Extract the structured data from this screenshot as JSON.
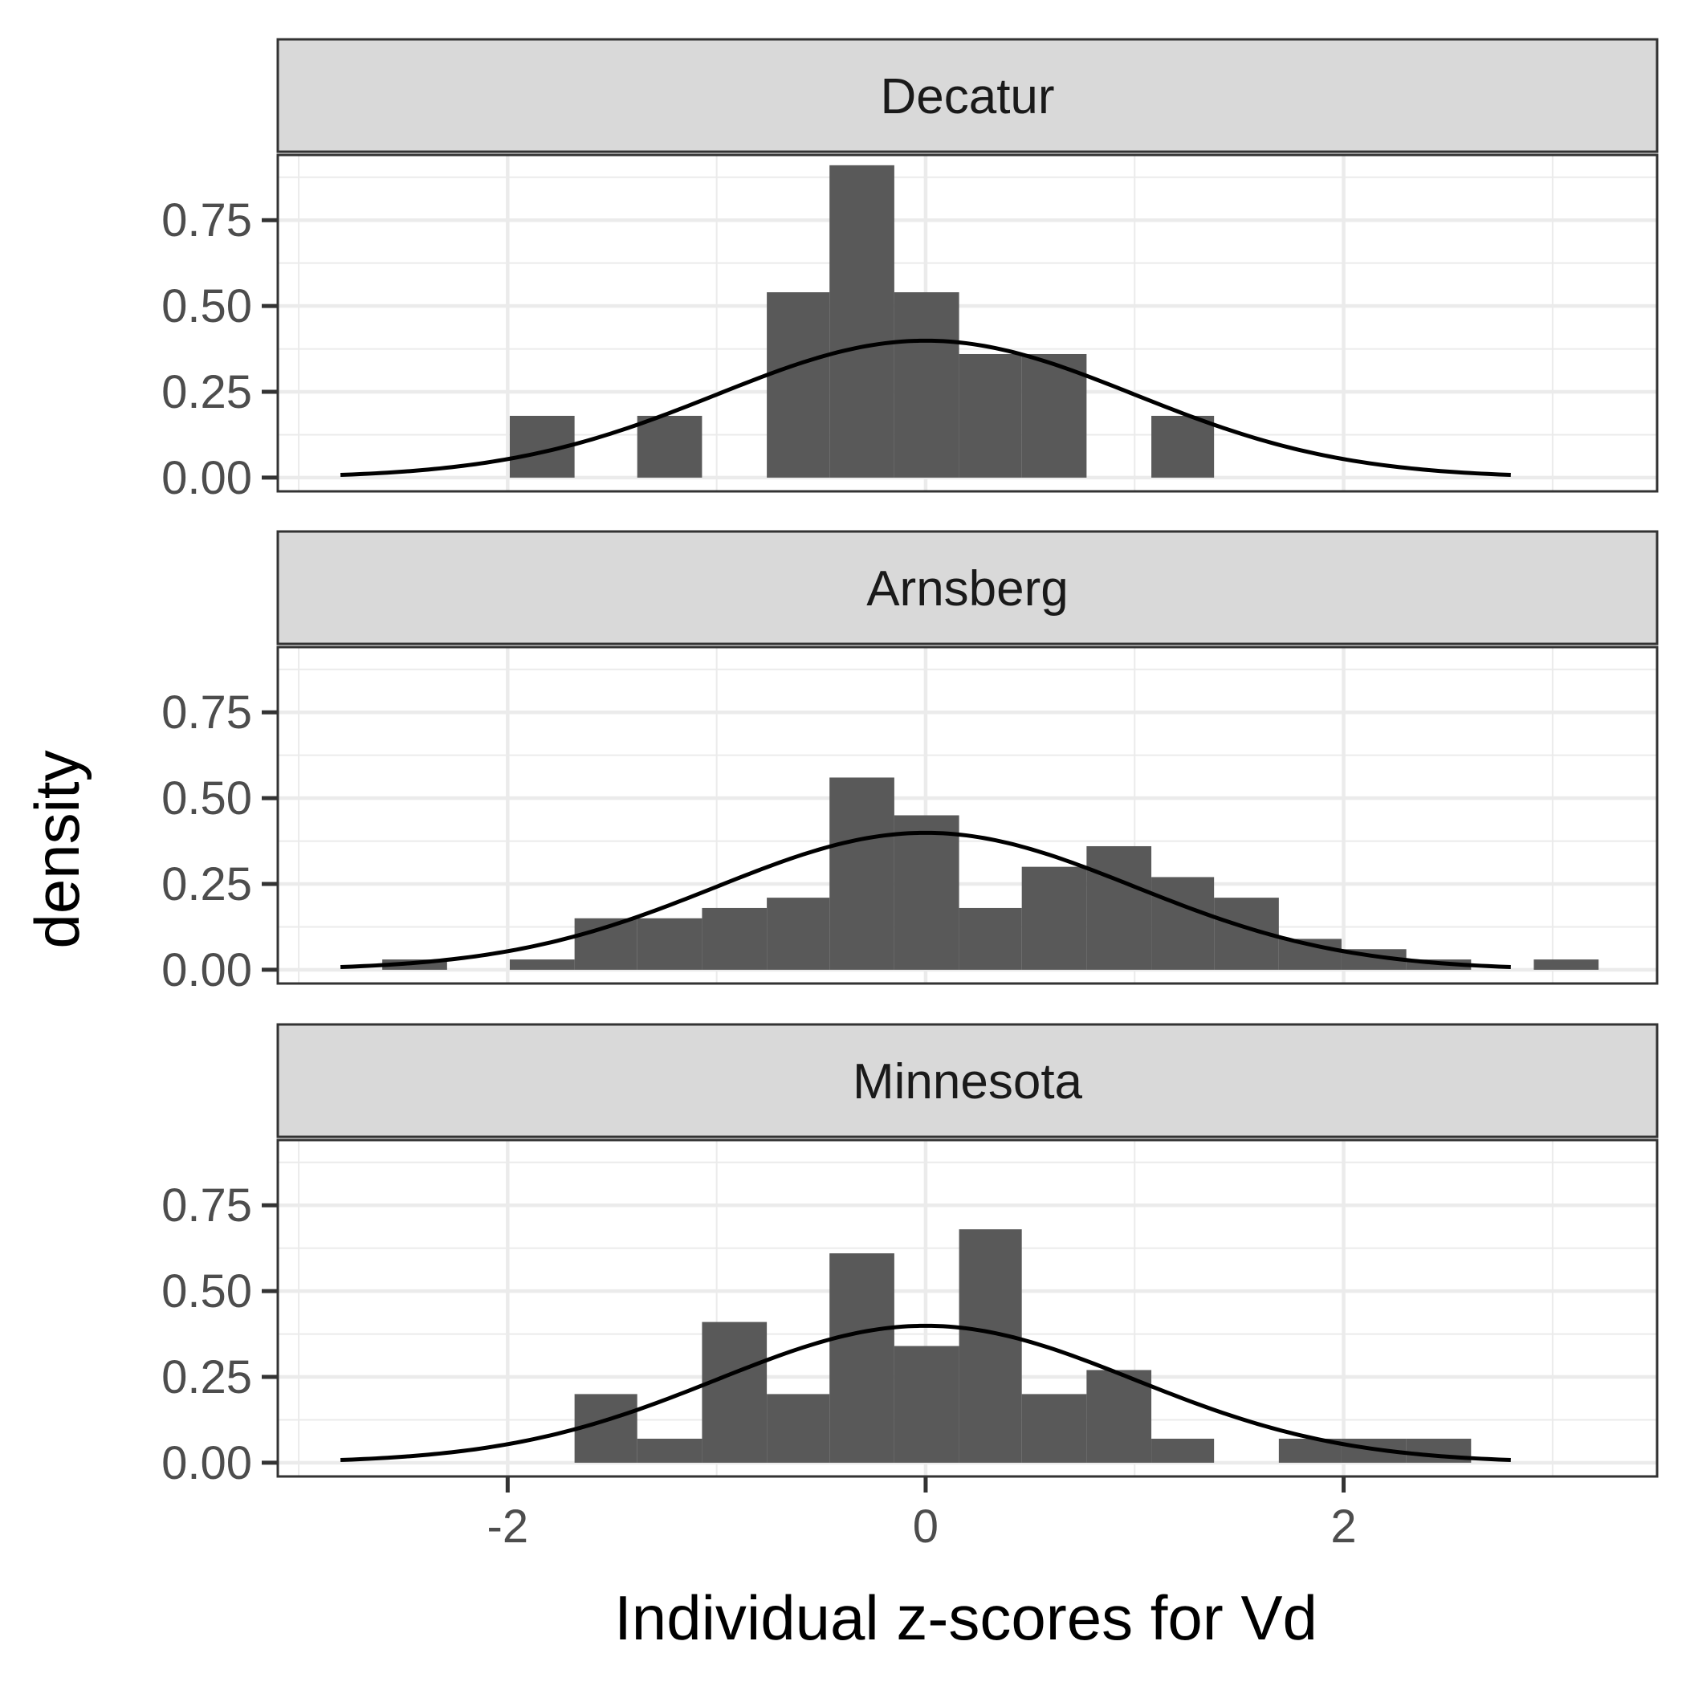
{
  "chart_data": {
    "type": "bar",
    "subtype": "faceted-histogram-with-normal-curve",
    "xlabel": "Individual z-scores for Vd",
    "ylabel": "density",
    "xlim": [
      -3.1,
      3.5
    ],
    "ylim": [
      -0.04,
      0.94
    ],
    "x_ticks": [
      -2,
      0,
      2
    ],
    "x_tick_labels": [
      "-2",
      "0",
      "2"
    ],
    "y_ticks": [
      0,
      0.25,
      0.5,
      0.75
    ],
    "y_tick_labels": [
      "0.00",
      "0.25",
      "0.50",
      "0.75"
    ],
    "grid": true,
    "bin_width": 0.306,
    "bar_color": "#595959",
    "curve": {
      "type": "normal-density",
      "mean": 0,
      "sd": 1,
      "x_range": [
        -2.8,
        2.8
      ],
      "color": "#000000"
    },
    "facets": [
      {
        "name": "Decatur",
        "bins": [
          {
            "x0": -1.99,
            "x1": -1.68,
            "density": 0.18
          },
          {
            "x0": -1.38,
            "x1": -1.07,
            "density": 0.18
          },
          {
            "x0": -0.76,
            "x1": -0.46,
            "density": 0.54
          },
          {
            "x0": -0.46,
            "x1": -0.15,
            "density": 0.91
          },
          {
            "x0": -0.15,
            "x1": 0.16,
            "density": 0.54
          },
          {
            "x0": 0.16,
            "x1": 0.46,
            "density": 0.36
          },
          {
            "x0": 0.46,
            "x1": 0.77,
            "density": 0.36
          },
          {
            "x0": 1.08,
            "x1": 1.38,
            "density": 0.18
          }
        ]
      },
      {
        "name": "Arnsberg",
        "bins": [
          {
            "x0": -2.6,
            "x1": -2.29,
            "density": 0.03
          },
          {
            "x0": -1.99,
            "x1": -1.68,
            "density": 0.03
          },
          {
            "x0": -1.68,
            "x1": -1.38,
            "density": 0.15
          },
          {
            "x0": -1.38,
            "x1": -1.07,
            "density": 0.15
          },
          {
            "x0": -1.07,
            "x1": -0.76,
            "density": 0.18
          },
          {
            "x0": -0.76,
            "x1": -0.46,
            "density": 0.21
          },
          {
            "x0": -0.46,
            "x1": -0.15,
            "density": 0.56
          },
          {
            "x0": -0.15,
            "x1": 0.16,
            "density": 0.45
          },
          {
            "x0": 0.16,
            "x1": 0.46,
            "density": 0.18
          },
          {
            "x0": 0.46,
            "x1": 0.77,
            "density": 0.3
          },
          {
            "x0": 0.77,
            "x1": 1.08,
            "density": 0.36
          },
          {
            "x0": 1.08,
            "x1": 1.38,
            "density": 0.27
          },
          {
            "x0": 1.38,
            "x1": 1.69,
            "density": 0.21
          },
          {
            "x0": 1.69,
            "x1": 1.99,
            "density": 0.09
          },
          {
            "x0": 1.99,
            "x1": 2.3,
            "density": 0.06
          },
          {
            "x0": 2.3,
            "x1": 2.61,
            "density": 0.03
          },
          {
            "x0": 2.91,
            "x1": 3.22,
            "density": 0.03
          }
        ]
      },
      {
        "name": "Minnesota",
        "bins": [
          {
            "x0": -1.68,
            "x1": -1.38,
            "density": 0.2
          },
          {
            "x0": -1.38,
            "x1": -1.07,
            "density": 0.07
          },
          {
            "x0": -1.07,
            "x1": -0.76,
            "density": 0.41
          },
          {
            "x0": -0.76,
            "x1": -0.46,
            "density": 0.2
          },
          {
            "x0": -0.46,
            "x1": -0.15,
            "density": 0.61
          },
          {
            "x0": -0.15,
            "x1": 0.16,
            "density": 0.34
          },
          {
            "x0": 0.16,
            "x1": 0.46,
            "density": 0.68
          },
          {
            "x0": 0.46,
            "x1": 0.77,
            "density": 0.2
          },
          {
            "x0": 0.77,
            "x1": 1.08,
            "density": 0.27
          },
          {
            "x0": 1.08,
            "x1": 1.38,
            "density": 0.07
          },
          {
            "x0": 1.69,
            "x1": 1.99,
            "density": 0.07
          },
          {
            "x0": 1.99,
            "x1": 2.3,
            "density": 0.07
          },
          {
            "x0": 2.3,
            "x1": 2.61,
            "density": 0.07
          }
        ]
      }
    ]
  }
}
